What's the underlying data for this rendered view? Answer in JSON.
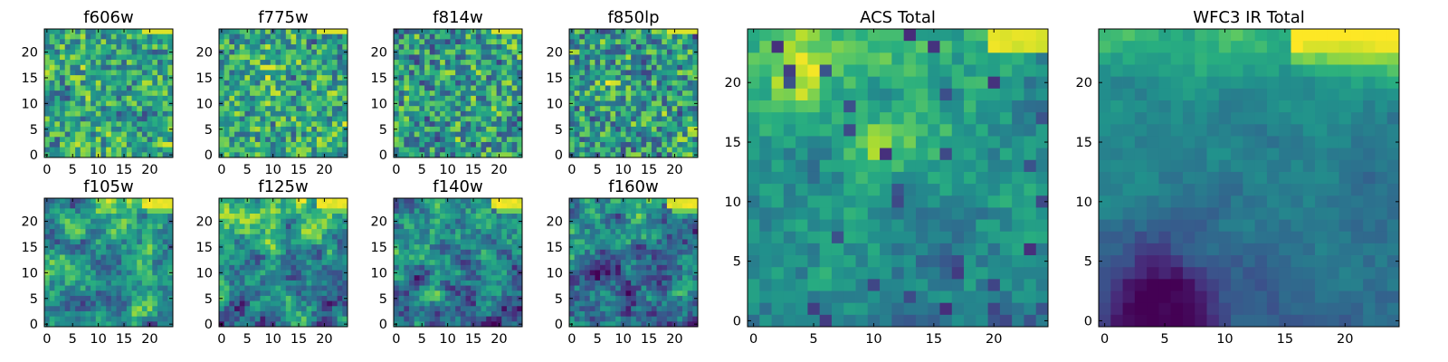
{
  "figure": {
    "colormap": "viridis",
    "colormap_stops": [
      "#440154",
      "#472d7b",
      "#3b528b",
      "#2c728e",
      "#21918c",
      "#28ae80",
      "#5ec962",
      "#addc30",
      "#fde725"
    ]
  },
  "chart_data": [
    {
      "type": "heatmap",
      "title": "f606w",
      "grid": [
        25,
        25
      ],
      "xlim": [
        0,
        24
      ],
      "ylim": [
        0,
        24
      ],
      "xticks": [
        "0",
        "5",
        "10",
        "15",
        "20"
      ],
      "yticks": [
        "0",
        "5",
        "10",
        "15",
        "20"
      ],
      "pattern": "noise",
      "seed": 11,
      "bias": 0.58,
      "noise": 0.55
    },
    {
      "type": "heatmap",
      "title": "f775w",
      "grid": [
        25,
        25
      ],
      "xlim": [
        0,
        24
      ],
      "ylim": [
        0,
        24
      ],
      "xticks": [
        "0",
        "5",
        "10",
        "15",
        "20"
      ],
      "yticks": [
        "0",
        "5",
        "10",
        "15",
        "20"
      ],
      "pattern": "noise",
      "seed": 23,
      "bias": 0.6,
      "noise": 0.55
    },
    {
      "type": "heatmap",
      "title": "f814w",
      "grid": [
        25,
        25
      ],
      "xlim": [
        0,
        24
      ],
      "ylim": [
        0,
        24
      ],
      "xticks": [
        "0",
        "5",
        "10",
        "15",
        "20"
      ],
      "yticks": [
        "0",
        "5",
        "10",
        "15",
        "20"
      ],
      "pattern": "noise",
      "seed": 37,
      "bias": 0.55,
      "noise": 0.6
    },
    {
      "type": "heatmap",
      "title": "f850lp",
      "grid": [
        25,
        25
      ],
      "xlim": [
        0,
        24
      ],
      "ylim": [
        0,
        24
      ],
      "xticks": [
        "0",
        "5",
        "10",
        "15",
        "20"
      ],
      "yticks": [
        "0",
        "5",
        "10",
        "15",
        "20"
      ],
      "pattern": "noise",
      "seed": 41,
      "bias": 0.54,
      "noise": 0.62
    },
    {
      "type": "heatmap",
      "title": "f105w",
      "grid": [
        25,
        25
      ],
      "xlim": [
        0,
        24
      ],
      "ylim": [
        0,
        24
      ],
      "xticks": [
        "0",
        "5",
        "10",
        "15",
        "20"
      ],
      "yticks": [
        "0",
        "5",
        "10",
        "15",
        "20"
      ],
      "pattern": "smooth",
      "seed": 53,
      "bias": 0.48,
      "noise": 0.3
    },
    {
      "type": "heatmap",
      "title": "f125w",
      "grid": [
        25,
        25
      ],
      "xlim": [
        0,
        24
      ],
      "ylim": [
        0,
        24
      ],
      "xticks": [
        "0",
        "5",
        "10",
        "15",
        "20"
      ],
      "yticks": [
        "0",
        "5",
        "10",
        "15",
        "20"
      ],
      "pattern": "smooth",
      "seed": 67,
      "bias": 0.5,
      "noise": 0.3
    },
    {
      "type": "heatmap",
      "title": "f140w",
      "grid": [
        25,
        25
      ],
      "xlim": [
        0,
        24
      ],
      "ylim": [
        0,
        24
      ],
      "xticks": [
        "0",
        "5",
        "10",
        "15",
        "20"
      ],
      "yticks": [
        "0",
        "5",
        "10",
        "15",
        "20"
      ],
      "pattern": "smooth",
      "seed": 71,
      "bias": 0.42,
      "noise": 0.32
    },
    {
      "type": "heatmap",
      "title": "f160w",
      "grid": [
        25,
        25
      ],
      "xlim": [
        0,
        24
      ],
      "ylim": [
        0,
        24
      ],
      "xticks": [
        "0",
        "5",
        "10",
        "15",
        "20"
      ],
      "yticks": [
        "0",
        "5",
        "10",
        "15",
        "20"
      ],
      "pattern": "smooth",
      "seed": 89,
      "bias": 0.4,
      "noise": 0.34
    },
    {
      "type": "heatmap",
      "title": "ACS Total",
      "grid": [
        25,
        25
      ],
      "xlim": [
        0,
        24
      ],
      "ylim": [
        0,
        24
      ],
      "xticks": [
        "0",
        "5",
        "10",
        "15",
        "20"
      ],
      "yticks": [
        "0",
        "5",
        "10",
        "15",
        "20"
      ],
      "pattern": "acs",
      "seed": 97,
      "bias": 0.62,
      "noise": 0.22
    },
    {
      "type": "heatmap",
      "title": "WFC3 IR Total",
      "grid": [
        25,
        25
      ],
      "xlim": [
        0,
        24
      ],
      "ylim": [
        0,
        24
      ],
      "xticks": [
        "0",
        "5",
        "10",
        "15",
        "20"
      ],
      "yticks": [
        "0",
        "5",
        "10",
        "15",
        "20"
      ],
      "pattern": "ir",
      "seed": 101,
      "bias": 0.4,
      "noise": 0.1
    }
  ]
}
